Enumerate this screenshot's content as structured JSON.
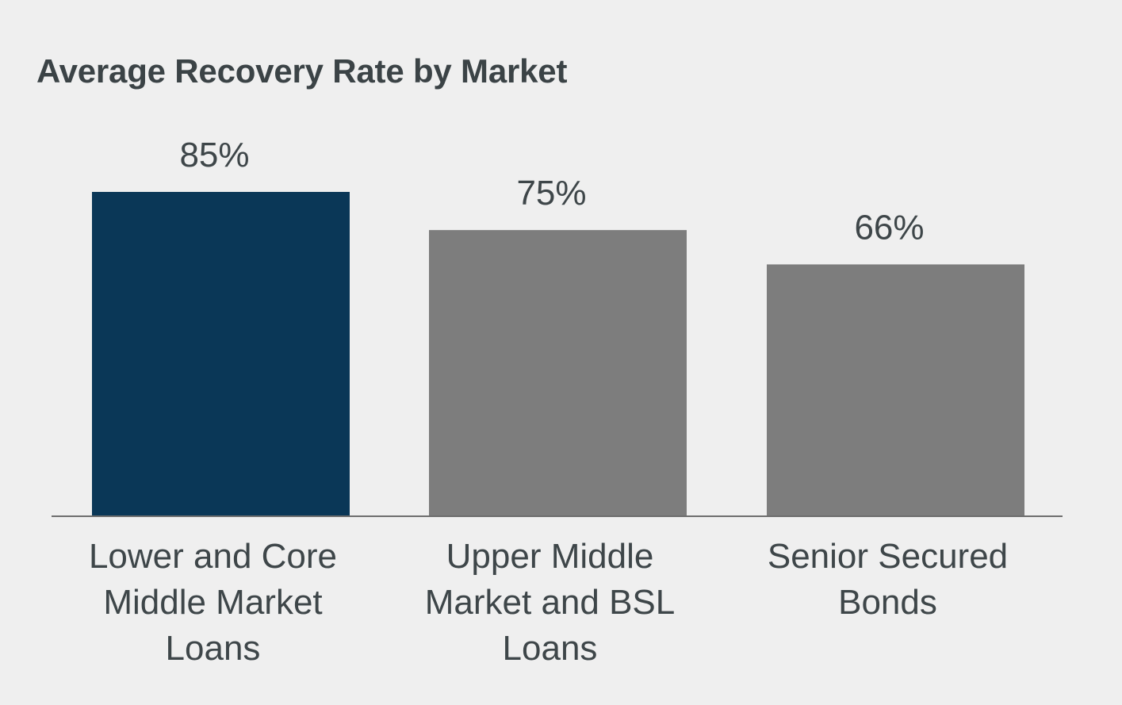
{
  "chart_data": {
    "type": "bar",
    "title": "Average Recovery Rate by Market",
    "categories": [
      "Lower and Core Middle Market Loans",
      "Upper Middle Market and BSL Loans",
      "Senior Secured Bonds"
    ],
    "category_lines": [
      [
        "Lower and Core",
        "Middle Market",
        "Loans"
      ],
      [
        "Upper Middle",
        "Market and BSL",
        "Loans"
      ],
      [
        "Senior Secured",
        "Bonds"
      ]
    ],
    "values": [
      85,
      75,
      66
    ],
    "value_labels": [
      "85%",
      "75%",
      "66%"
    ],
    "unit": "%",
    "xlabel": "",
    "ylabel": "",
    "ylim": [
      0,
      100
    ],
    "grid": false,
    "legend": "none",
    "colors": [
      "#0a3757",
      "#7d7d7d",
      "#7d7d7d"
    ],
    "axis_color": "#6e6e6e",
    "text_color": "#3e4649",
    "background": "#efefef"
  }
}
